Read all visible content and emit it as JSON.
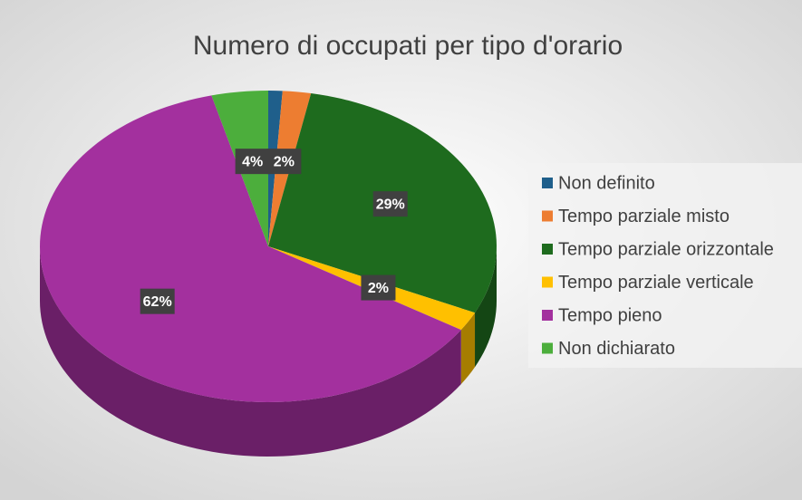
{
  "chart_data": {
    "type": "pie",
    "title": "Numero di occupati per tipo d'orario",
    "categories": [
      "Non definito",
      "Tempo parziale misto",
      "Tempo parziale orizzontale",
      "Tempo parziale verticale",
      "Tempo pieno",
      "Non dichiarato"
    ],
    "values": [
      1,
      2,
      29,
      2,
      62,
      4
    ],
    "value_labels": [
      null,
      "2%",
      "29%",
      "2%",
      "62%",
      "4%"
    ],
    "colors": [
      "#1f5f8b",
      "#ed7d31",
      "#1e6b1e",
      "#ffc000",
      "#a3309e",
      "#4cae3c"
    ],
    "legend": "right"
  }
}
